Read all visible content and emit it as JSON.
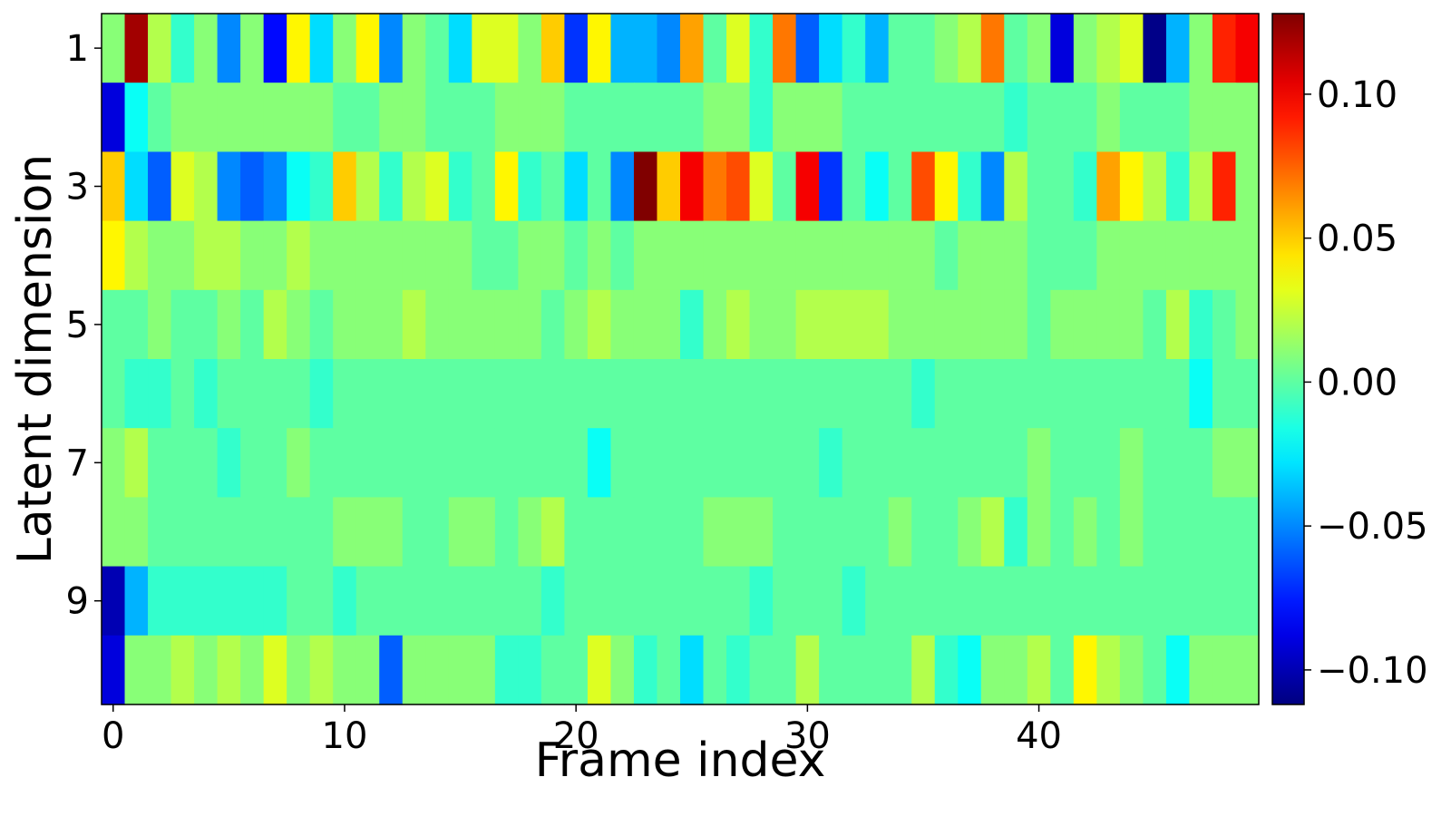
{
  "chart_data": {
    "type": "heatmap",
    "title": "",
    "xlabel": "Frame index",
    "ylabel": "Latent dimension",
    "colormap": "jet",
    "vmin": -0.112,
    "vmax": 0.128,
    "grid": false,
    "legend": "colorbar-right",
    "x_ticks": [
      0,
      10,
      20,
      30,
      40
    ],
    "y_ticks": [
      1,
      3,
      5,
      7,
      9
    ],
    "colorbar_ticks": [
      {
        "value": 0.1,
        "label": "0.10"
      },
      {
        "value": 0.05,
        "label": "0.05"
      },
      {
        "value": 0.0,
        "label": "0.00"
      },
      {
        "value": -0.05,
        "label": "−0.05"
      },
      {
        "value": -0.1,
        "label": "−0.10"
      }
    ],
    "rows": [
      1,
      2,
      3,
      4,
      5,
      6,
      7,
      8,
      9,
      10
    ],
    "columns": [
      0,
      1,
      2,
      3,
      4,
      5,
      6,
      7,
      8,
      9,
      10,
      11,
      12,
      13,
      14,
      15,
      16,
      17,
      18,
      19,
      20,
      21,
      22,
      23,
      24,
      25,
      26,
      27,
      28,
      29,
      30,
      31,
      32,
      33,
      34,
      35,
      36,
      37,
      38,
      39,
      40,
      41,
      42,
      43,
      44,
      45,
      46,
      47,
      48,
      49
    ],
    "values": [
      [
        0.01,
        0.12,
        0.02,
        -0.01,
        0.01,
        -0.05,
        0.01,
        -0.08,
        0.04,
        -0.03,
        0.01,
        0.04,
        -0.05,
        0.01,
        0.0,
        -0.03,
        0.03,
        0.03,
        0.01,
        0.05,
        -0.07,
        0.04,
        -0.04,
        -0.04,
        -0.05,
        0.06,
        0.0,
        0.03,
        -0.01,
        0.07,
        -0.06,
        -0.03,
        -0.01,
        -0.04,
        0.0,
        0.0,
        0.01,
        0.02,
        0.07,
        0.0,
        0.01,
        -0.09,
        0.01,
        0.02,
        0.03,
        -0.11,
        -0.04,
        0.01,
        0.09,
        0.1
      ],
      [
        -0.09,
        -0.02,
        0.0,
        0.01,
        0.01,
        0.01,
        0.01,
        0.01,
        0.01,
        0.01,
        0.0,
        0.0,
        0.01,
        0.01,
        0.0,
        0.0,
        0.0,
        0.01,
        0.01,
        0.01,
        0.0,
        0.0,
        0.0,
        0.0,
        0.0,
        0.0,
        0.01,
        0.01,
        -0.01,
        0.01,
        0.01,
        0.01,
        0.0,
        0.0,
        0.0,
        0.0,
        0.0,
        0.0,
        0.0,
        -0.01,
        0.0,
        0.0,
        0.0,
        0.01,
        0.0,
        0.0,
        0.0,
        0.01,
        0.01,
        0.01
      ],
      [
        0.05,
        -0.03,
        -0.06,
        0.03,
        0.02,
        -0.05,
        -0.06,
        -0.05,
        -0.02,
        -0.01,
        0.05,
        0.02,
        -0.01,
        0.02,
        0.03,
        -0.01,
        0.0,
        0.04,
        -0.01,
        0.0,
        -0.03,
        0.0,
        -0.05,
        0.13,
        0.05,
        0.1,
        0.07,
        0.08,
        0.03,
        0.0,
        0.1,
        -0.07,
        0.0,
        -0.02,
        0.0,
        0.08,
        0.04,
        -0.01,
        -0.05,
        0.02,
        0.0,
        0.0,
        -0.01,
        0.06,
        0.04,
        0.02,
        -0.01,
        0.02,
        0.09,
        0.01
      ],
      [
        0.04,
        0.02,
        0.01,
        0.01,
        0.02,
        0.02,
        0.01,
        0.01,
        0.02,
        0.01,
        0.01,
        0.01,
        0.01,
        0.01,
        0.01,
        0.01,
        0.0,
        0.0,
        0.01,
        0.01,
        0.0,
        0.01,
        0.0,
        0.01,
        0.01,
        0.01,
        0.01,
        0.01,
        0.01,
        0.01,
        0.01,
        0.01,
        0.01,
        0.01,
        0.01,
        0.01,
        0.0,
        0.01,
        0.01,
        0.01,
        0.0,
        0.0,
        0.0,
        0.01,
        0.01,
        0.01,
        0.01,
        0.01,
        0.01,
        0.01
      ],
      [
        0.0,
        0.0,
        0.01,
        0.0,
        0.0,
        0.01,
        0.0,
        0.02,
        0.01,
        0.0,
        0.01,
        0.01,
        0.01,
        0.02,
        0.01,
        0.01,
        0.01,
        0.01,
        0.01,
        0.0,
        0.01,
        0.02,
        0.01,
        0.01,
        0.01,
        -0.01,
        0.01,
        0.02,
        0.01,
        0.01,
        0.02,
        0.02,
        0.02,
        0.02,
        0.01,
        0.01,
        0.01,
        0.01,
        0.01,
        0.01,
        0.0,
        0.01,
        0.01,
        0.01,
        0.01,
        0.0,
        0.02,
        -0.01,
        0.0,
        0.01
      ],
      [
        0.0,
        -0.01,
        -0.01,
        0.0,
        -0.01,
        0.0,
        0.0,
        0.0,
        0.0,
        -0.01,
        0.0,
        0.0,
        0.0,
        0.0,
        0.0,
        0.0,
        0.0,
        0.0,
        0.0,
        0.0,
        0.0,
        0.0,
        0.0,
        0.0,
        0.0,
        0.0,
        0.0,
        0.0,
        0.0,
        0.0,
        0.0,
        0.0,
        0.0,
        0.0,
        0.0,
        -0.01,
        0.0,
        0.0,
        0.0,
        0.0,
        0.0,
        0.0,
        0.0,
        0.0,
        0.0,
        0.0,
        0.0,
        -0.02,
        0.0,
        0.0
      ],
      [
        0.01,
        0.02,
        0.0,
        0.0,
        0.0,
        -0.01,
        0.0,
        0.0,
        0.01,
        0.0,
        0.0,
        0.0,
        0.0,
        0.0,
        0.0,
        0.0,
        0.0,
        0.0,
        0.0,
        0.0,
        0.0,
        -0.02,
        0.0,
        0.0,
        0.0,
        0.0,
        0.0,
        0.0,
        0.0,
        0.0,
        0.0,
        -0.01,
        0.0,
        0.0,
        0.0,
        0.0,
        0.0,
        0.0,
        0.0,
        0.0,
        0.01,
        0.0,
        0.0,
        0.0,
        0.01,
        0.0,
        0.0,
        0.0,
        0.01,
        0.01
      ],
      [
        0.01,
        0.01,
        0.0,
        0.0,
        0.0,
        0.0,
        0.0,
        0.0,
        0.0,
        0.0,
        0.01,
        0.01,
        0.01,
        0.0,
        0.0,
        0.01,
        0.01,
        0.0,
        0.01,
        0.02,
        0.0,
        0.0,
        0.0,
        0.0,
        0.0,
        0.0,
        0.01,
        0.01,
        0.01,
        0.0,
        0.0,
        0.0,
        0.0,
        0.0,
        0.01,
        0.0,
        0.0,
        0.01,
        0.02,
        -0.01,
        0.01,
        0.0,
        0.01,
        0.0,
        0.01,
        0.0,
        0.0,
        0.0,
        0.0,
        0.0
      ],
      [
        -0.1,
        -0.04,
        -0.01,
        -0.01,
        -0.01,
        -0.01,
        -0.01,
        -0.01,
        0.0,
        0.0,
        -0.01,
        0.0,
        0.0,
        0.0,
        0.0,
        0.0,
        0.0,
        0.0,
        0.0,
        -0.01,
        0.0,
        0.0,
        0.0,
        0.0,
        0.0,
        0.0,
        0.0,
        0.0,
        -0.01,
        0.0,
        0.0,
        0.0,
        -0.01,
        0.0,
        0.0,
        0.0,
        0.0,
        0.0,
        0.0,
        0.0,
        0.0,
        0.0,
        0.0,
        0.0,
        0.0,
        0.0,
        0.0,
        0.0,
        0.0,
        0.0
      ],
      [
        -0.09,
        0.01,
        0.01,
        0.02,
        0.01,
        0.02,
        0.01,
        0.03,
        0.01,
        0.02,
        0.01,
        0.01,
        -0.06,
        0.01,
        0.01,
        0.01,
        0.01,
        -0.01,
        -0.01,
        0.0,
        0.0,
        0.03,
        0.01,
        -0.01,
        0.0,
        -0.03,
        0.0,
        -0.01,
        0.0,
        0.0,
        0.02,
        0.0,
        0.0,
        0.0,
        0.0,
        0.02,
        -0.01,
        -0.02,
        0.01,
        0.01,
        0.02,
        0.0,
        0.04,
        0.02,
        0.01,
        0.0,
        -0.02,
        0.01,
        0.01,
        0.01
      ]
    ]
  }
}
